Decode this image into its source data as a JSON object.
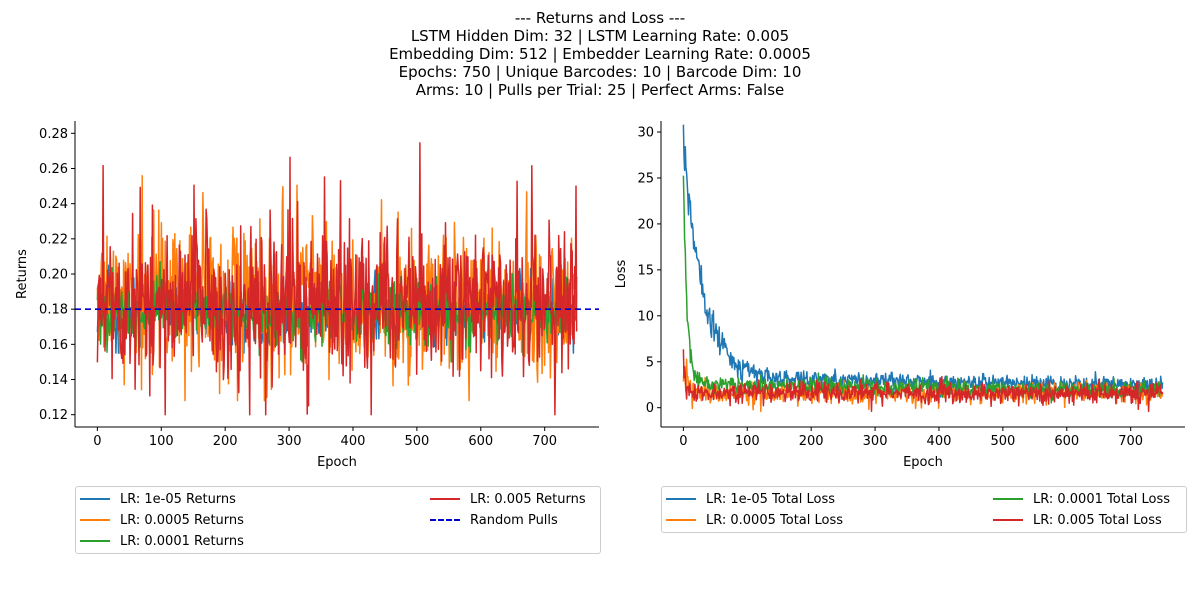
{
  "title_lines": [
    "--- Returns and Loss ---",
    "LSTM Hidden Dim: 32 | LSTM Learning Rate: 0.005",
    "Embedding Dim: 512 | Embedder Learning Rate: 0.0005",
    "Epochs: 750 | Unique Barcodes: 10 | Barcode Dim: 10",
    "Arms: 10 | Pulls per Trial: 25 | Perfect Arms: False"
  ],
  "chart_data": [
    {
      "type": "line",
      "xlabel": "Epoch",
      "ylabel": "Returns",
      "xlim": [
        -35,
        785
      ],
      "ylim": [
        0.113,
        0.287
      ],
      "xticks": [
        0,
        100,
        200,
        300,
        400,
        500,
        600,
        700
      ],
      "yticks": [
        0.12,
        0.14,
        0.16,
        0.18,
        0.2,
        0.22,
        0.24,
        0.26,
        0.28
      ],
      "legend_position": "below",
      "legend_columns": 2,
      "series": [
        {
          "name": "LR: 1e-05 Returns",
          "color": "#1f77b4",
          "style": "solid",
          "x_range": [
            0,
            750
          ],
          "points": 750,
          "baseline": 0.179,
          "spread": 0.008,
          "min": 0.155,
          "max": 0.205
        },
        {
          "name": "LR: 0.0005 Returns",
          "color": "#ff7f0e",
          "style": "solid",
          "x_range": [
            0,
            750
          ],
          "points": 750,
          "baseline": 0.183,
          "spread": 0.021,
          "min": 0.128,
          "max": 0.263
        },
        {
          "name": "LR: 0.0001 Returns",
          "color": "#2ca02c",
          "style": "solid",
          "x_range": [
            0,
            750
          ],
          "points": 750,
          "baseline": 0.178,
          "spread": 0.008,
          "min": 0.15,
          "max": 0.21
        },
        {
          "name": "LR: 0.005 Returns",
          "color": "#d62728",
          "style": "solid",
          "x_range": [
            0,
            750
          ],
          "points": 750,
          "baseline": 0.183,
          "spread": 0.022,
          "min": 0.12,
          "max": 0.279
        },
        {
          "name": "Random Pulls",
          "color": "#0000cc",
          "style": "dashed",
          "y": 0.18
        }
      ],
      "legend_order": [
        0,
        1,
        2,
        3,
        4
      ]
    },
    {
      "type": "line",
      "xlabel": "Epoch",
      "ylabel": "Loss",
      "xlim": [
        -35,
        785
      ],
      "ylim": [
        -2.1,
        31.2
      ],
      "xticks": [
        0,
        100,
        200,
        300,
        400,
        500,
        600,
        700
      ],
      "yticks": [
        0,
        5,
        10,
        15,
        20,
        25,
        30
      ],
      "legend_position": "below",
      "legend_columns": 2,
      "series": [
        {
          "name": "LR: 1e-05 Total Loss",
          "color": "#1f77b4",
          "style": "solid",
          "x_range": [
            0,
            750
          ],
          "points": 750,
          "start": 29.6,
          "decay": 30,
          "floor": 3.3,
          "floor_slope": -0.0012,
          "spread": 0.45
        },
        {
          "name": "LR: 0.0005 Total Loss",
          "color": "#ff7f0e",
          "style": "solid",
          "x_range": [
            0,
            750
          ],
          "points": 750,
          "start": 4.0,
          "decay": 8,
          "floor": 1.6,
          "floor_slope": 0,
          "spread": 0.5
        },
        {
          "name": "LR: 0.0001 Total Loss",
          "color": "#2ca02c",
          "style": "solid",
          "x_range": [
            0,
            750
          ],
          "points": 750,
          "start": 26.0,
          "decay": 6,
          "floor": 2.6,
          "floor_slope": -0.001,
          "spread": 0.45
        },
        {
          "name": "LR: 0.005 Total Loss",
          "color": "#d62728",
          "style": "solid",
          "x_range": [
            0,
            750
          ],
          "points": 750,
          "start": 4.8,
          "decay": 3,
          "floor": 1.6,
          "floor_slope": 0,
          "spread": 0.55
        }
      ],
      "legend_order": [
        0,
        1,
        2,
        3
      ]
    }
  ]
}
